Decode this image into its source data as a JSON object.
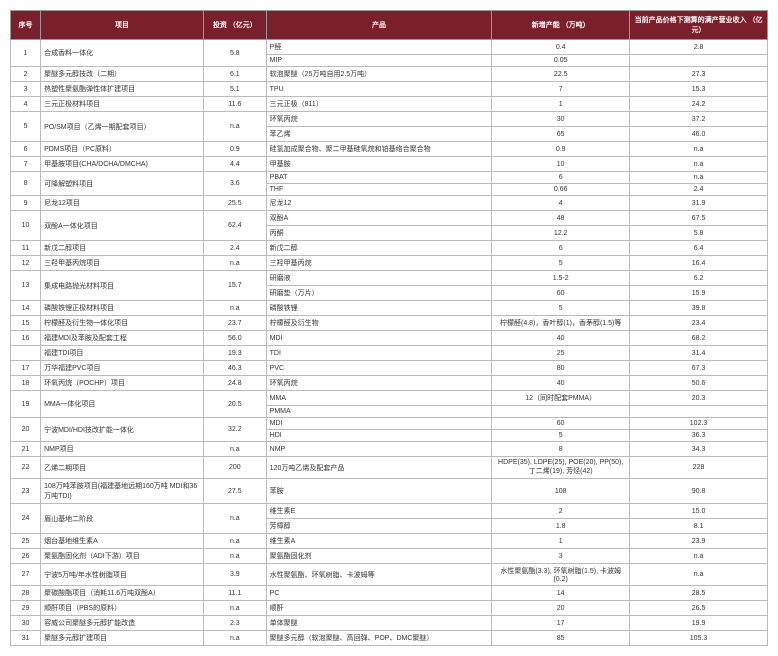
{
  "colors": {
    "header_bg": "#7a1f2b",
    "header_text": "#ffffff",
    "cell_bg": "#ffffff",
    "border": "#bbbbbb"
  },
  "headers": [
    "序号",
    "项目",
    "投资\n（亿元）",
    "产品",
    "新增产能\n（万吨）",
    "当前产品价格下测算的满产营业收入\n（亿元）"
  ],
  "rows": [
    {
      "idx": "1",
      "project": "合成香料一体化",
      "inv": "5.8",
      "products": [
        {
          "p": "P醛",
          "cap": "0.4",
          "rev": "2.8"
        },
        {
          "p": "MIP",
          "cap": "0.05",
          "rev": ""
        }
      ]
    },
    {
      "idx": "2",
      "project": "聚醚多元醇技改（二期）",
      "inv": "6.1",
      "products": [
        {
          "p": "软泡聚醚（25万吨自用2.5万吨）",
          "cap": "22.5",
          "rev": "27.3"
        }
      ]
    },
    {
      "idx": "3",
      "project": "热塑性聚氨酯弹性体扩建项目",
      "inv": "5.1",
      "products": [
        {
          "p": "TPU",
          "cap": "7",
          "rev": "15.3"
        }
      ]
    },
    {
      "idx": "4",
      "project": "三元正极材料项目",
      "inv": "11.6",
      "products": [
        {
          "p": "三元正极（811）",
          "cap": "1",
          "rev": "24.2"
        }
      ]
    },
    {
      "idx": "5",
      "project": "PO/SM项目（乙烯一期配套项目）",
      "inv": "n.a",
      "products": [
        {
          "p": "环氧丙烷",
          "cap": "30",
          "rev": "37.2"
        },
        {
          "p": "苯乙烯",
          "cap": "65",
          "rev": "46.0"
        }
      ]
    },
    {
      "idx": "6",
      "project": "PDMS项目（PC原料）",
      "inv": "0.9",
      "products": [
        {
          "p": "硅氢加成聚合物、聚二甲基硅氧烷和铂基络合聚合物",
          "cap": "0.9",
          "rev": "n.a"
        }
      ]
    },
    {
      "idx": "7",
      "project": "甲基胺项目(CHA/DCHA/DMCHA)",
      "inv": "4.4",
      "products": [
        {
          "p": "甲基胺",
          "cap": "10",
          "rev": "n.a"
        }
      ]
    },
    {
      "idx": "8",
      "project": "可降解塑料项目",
      "inv": "3.6",
      "products": [
        {
          "p": "PBAT",
          "cap": "6",
          "rev": "n.a"
        },
        {
          "p": "THF",
          "cap": "0.66",
          "rev": "2.4"
        }
      ]
    },
    {
      "idx": "9",
      "project": "尼龙12项目",
      "inv": "25.5",
      "products": [
        {
          "p": "尼龙12",
          "cap": "4",
          "rev": "31.9"
        }
      ]
    },
    {
      "idx": "10",
      "project": "双酚A一体化项目",
      "inv": "62.4",
      "products": [
        {
          "p": "双酚A",
          "cap": "48",
          "rev": "67.5"
        },
        {
          "p": "丙酮",
          "cap": "12.2",
          "rev": "5.8"
        }
      ]
    },
    {
      "idx": "11",
      "project": "新戊二醇项目",
      "inv": "2.4",
      "products": [
        {
          "p": "新戊二醇",
          "cap": "6",
          "rev": "6.4"
        }
      ]
    },
    {
      "idx": "12",
      "project": "三羟甲基丙烷项目",
      "inv": "n.a",
      "products": [
        {
          "p": "三羟甲基丙烷",
          "cap": "5",
          "rev": "16.4"
        }
      ]
    },
    {
      "idx": "13",
      "project": "集成电路抛光材料项目",
      "inv": "15.7",
      "products": [
        {
          "p": "研磨液",
          "cap": "1.5-2",
          "rev": "6.2"
        },
        {
          "p": "研磨垫（万片）",
          "cap": "60",
          "rev": "15.9"
        }
      ]
    },
    {
      "idx": "14",
      "project": "磷酸铁锂正极材料项目",
      "inv": "n.a",
      "products": [
        {
          "p": "磷酸铁锂",
          "cap": "5",
          "rev": "39.8"
        }
      ]
    },
    {
      "idx": "15",
      "project": "柠檬醛及衍生物一体化项目",
      "inv": "23.7",
      "products": [
        {
          "p": "柠檬醛及衍生物",
          "cap": "柠檬醛(4.8)，香叶醇(1)，香茅醇(1.5)等",
          "rev": "23.4"
        }
      ]
    },
    {
      "idx": "16",
      "project": "福建MDI及苯胺及配套工程",
      "inv": "56.0",
      "products": [
        {
          "p": "MDI",
          "cap": "40",
          "rev": "68.2"
        }
      ]
    },
    {
      "idx": "",
      "project": "福建TDI项目",
      "inv": "19.3",
      "products": [
        {
          "p": "TDI",
          "cap": "25",
          "rev": "31.4"
        }
      ]
    },
    {
      "idx": "17",
      "project": "万华福建PVC项目",
      "inv": "46.3",
      "products": [
        {
          "p": "PVC",
          "cap": "80",
          "rev": "67.3"
        }
      ]
    },
    {
      "idx": "18",
      "project": "环氧丙烷（POCHP）项目",
      "inv": "24.8",
      "products": [
        {
          "p": "环氧丙烷",
          "cap": "40",
          "rev": "50.6"
        }
      ]
    },
    {
      "idx": "19",
      "project": "MMA一体化项目",
      "inv": "20.5",
      "products": [
        {
          "p": "MMA",
          "cap": "12（同时配套PMMA）",
          "rev": "20.3"
        },
        {
          "p": "PMMA",
          "cap": "",
          "rev": ""
        }
      ]
    },
    {
      "idx": "20",
      "project": "宁波MDI/HDI技改扩能一体化",
      "inv": "32.2",
      "products": [
        {
          "p": "MDI",
          "cap": "60",
          "rev": "102.3"
        },
        {
          "p": "HDI",
          "cap": "5",
          "rev": "36.3"
        }
      ]
    },
    {
      "idx": "21",
      "project": "NMP项目",
      "inv": "n.a",
      "products": [
        {
          "p": "NMP",
          "cap": "8",
          "rev": "34.3"
        }
      ]
    },
    {
      "idx": "22",
      "project": "乙烯二期项目",
      "inv": "200",
      "products": [
        {
          "p": "120万吨乙烯及配套产品",
          "cap": "HDPE(35), LDPE(25), POE(20),\nPP(50), 丁二烯(19), 芳烃(42)",
          "rev": "228"
        }
      ]
    },
    {
      "idx": "23",
      "project": "108万吨苯胺项目(福建基地远期160万吨\nMDI和36万吨TDI)",
      "inv": "27.5",
      "products": [
        {
          "p": "苯胺",
          "cap": "108",
          "rev": "90.8"
        }
      ]
    },
    {
      "idx": "24",
      "project": "眉山基地二阶段",
      "inv": "n.a",
      "products": [
        {
          "p": "维生素E",
          "cap": "2",
          "rev": "15.0"
        },
        {
          "p": "芳樟醇",
          "cap": "1.8",
          "rev": "8.1"
        }
      ]
    },
    {
      "idx": "25",
      "project": "烟台基地维生素A",
      "inv": "n.a",
      "products": [
        {
          "p": "维生素A",
          "cap": "1",
          "rev": "23.9"
        }
      ]
    },
    {
      "idx": "26",
      "project": "聚氨酯固化剂（ADI下游）项目",
      "inv": "n.a",
      "products": [
        {
          "p": "聚氨酯固化剂",
          "cap": "3",
          "rev": "n.a"
        }
      ]
    },
    {
      "idx": "27",
      "project": "宁波5万吨/年水性树脂项目",
      "inv": "3.9",
      "products": [
        {
          "p": "水性聚氨酯、环氧树脂、卡波姆等",
          "cap": "水性聚氨酯(3.3), 环氧树脂(1.5), 卡波姆\n(0.2)",
          "rev": "n.a"
        }
      ]
    },
    {
      "idx": "28",
      "project": "聚碳酸酯项目（消耗11.6万吨双酚A）",
      "inv": "11.1",
      "products": [
        {
          "p": "PC",
          "cap": "14",
          "rev": "28.5"
        }
      ]
    },
    {
      "idx": "29",
      "project": "顺酐项目（PBS的原料）",
      "inv": "n.a",
      "products": [
        {
          "p": "顺酐",
          "cap": "20",
          "rev": "26.5"
        }
      ]
    },
    {
      "idx": "30",
      "project": "容威公司聚醚多元醇扩能改造",
      "inv": "2.3",
      "products": [
        {
          "p": "单体聚醚",
          "cap": "17",
          "rev": "19.9"
        }
      ]
    },
    {
      "idx": "31",
      "project": "聚醚多元醇扩建项目",
      "inv": "n.a",
      "products": [
        {
          "p": "聚醚多元醇（软泡聚醚、高回弹、POP、DMC聚醚）",
          "cap": "85",
          "rev": "105.3"
        }
      ]
    }
  ]
}
